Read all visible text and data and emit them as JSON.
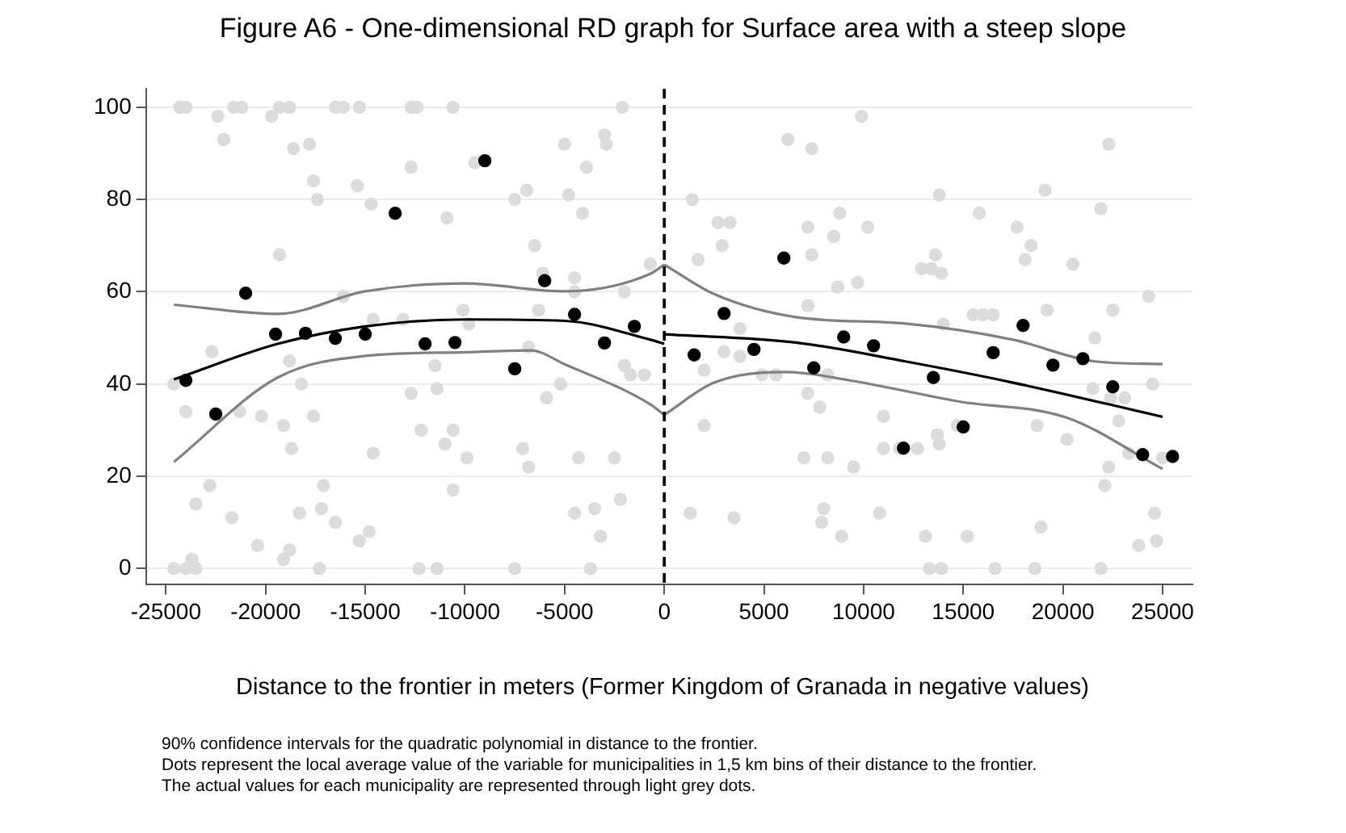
{
  "chart_data": {
    "type": "scatter",
    "title": "Figure A6 - One-dimensional RD graph for Surface area with a steep slope",
    "xlabel": "Distance to the frontier in meters (Former Kingdom of Granada in negative values)",
    "annotations": [
      "90% confidence intervals for the quadratic polynomial in distance to the frontier.",
      "Dots represent the local average value of the variable for municipalities in 1,5 km bins of their distance to the frontier.",
      "The actual values for each municipality are represented through light grey dots."
    ],
    "xlim": [
      -26000,
      26500
    ],
    "ylim": [
      -3.5,
      104
    ],
    "xticks": [
      -25000,
      -20000,
      -15000,
      -10000,
      -5000,
      0,
      5000,
      10000,
      15000,
      20000,
      25000
    ],
    "yticks": [
      0,
      20,
      40,
      60,
      80,
      100
    ],
    "grid": "y",
    "marker": "circle",
    "ref_lines": [
      {
        "axis": "x",
        "value": 0,
        "color": "#000000",
        "line_style": "dashed"
      }
    ],
    "series": [
      {
        "color": "#dcdcdc",
        "x": [
          -24600,
          -24000,
          -23700,
          -23500,
          -24300,
          -24000,
          -22400,
          -22100,
          -21600,
          -21200,
          -22700,
          -24000,
          -23500,
          -22800,
          -21700,
          -21300,
          -20400,
          -20200,
          -19700,
          -19300,
          -18800,
          -19300,
          -19100,
          -18700,
          -18600,
          -18800,
          -19100,
          -18800,
          -18300,
          -18200,
          -17800,
          -17600,
          -17400,
          -17600,
          -17300,
          -17200,
          -17100,
          -16500,
          -16500,
          -16100,
          -16100,
          -15300,
          -15400,
          -15300,
          -14800,
          -14700,
          -14600,
          -14600,
          -13100,
          -12700,
          -12400,
          -12700,
          -12700,
          -12300,
          -12200,
          -11500,
          -11400,
          -11400,
          -11000,
          -10600,
          -10900,
          -10600,
          -10600,
          -10100,
          -9900,
          -9800,
          -9500,
          -7500,
          -7500,
          -7100,
          -6900,
          -6800,
          -6800,
          -6500,
          -6300,
          -6100,
          -5900,
          -5200,
          -5000,
          -4800,
          -4500,
          -4300,
          -4500,
          -4500,
          -3900,
          -4100,
          -3500,
          -3200,
          -3000,
          -2900,
          -2500,
          -2200,
          -2100,
          -2000,
          -2000,
          -1700,
          -1000,
          -700,
          -3700,
          -24600,
          1300,
          1700,
          1400,
          2000,
          2000,
          2700,
          3300,
          2900,
          3000,
          3500,
          3800,
          3800,
          4900,
          5600,
          6200,
          7400,
          7200,
          7200,
          7400,
          7200,
          7800,
          8000,
          7900,
          8200,
          8500,
          8800,
          8700,
          8900,
          9500,
          9700,
          10200,
          10800,
          11000,
          11000,
          11800,
          12700,
          9900,
          7000,
          8200,
          12900,
          13400,
          13900,
          13600,
          13800,
          14000,
          13100,
          13300,
          13900,
          13700,
          13800,
          14700,
          15200,
          15500,
          16000,
          16500,
          15800,
          16600,
          17700,
          18400,
          18100,
          18700,
          18600,
          18900,
          19100,
          19200,
          20200,
          20500,
          21600,
          21900,
          22300,
          22500,
          21500,
          22400,
          23100,
          22800,
          22100,
          22300,
          21900,
          23300,
          23800,
          24300,
          24500,
          24600,
          24700,
          25000
        ],
        "values": [
          0,
          0,
          2,
          0,
          100,
          100,
          98,
          93,
          100,
          100,
          47,
          34,
          14,
          18,
          11,
          34,
          5,
          33,
          98,
          100,
          100,
          68,
          31,
          26,
          91,
          45,
          2,
          4,
          12,
          40,
          92,
          84,
          80,
          33,
          0,
          13,
          18,
          10,
          100,
          100,
          59,
          100,
          83,
          6,
          8,
          79,
          54,
          25,
          54,
          100,
          100,
          87,
          38,
          0,
          30,
          44,
          0,
          39,
          27,
          100,
          76,
          30,
          17,
          56,
          24,
          53,
          88,
          80,
          0,
          26,
          82,
          22,
          48,
          70,
          56,
          64,
          37,
          40,
          92,
          81,
          60,
          24,
          12,
          63,
          87,
          77,
          13,
          7,
          94,
          92,
          24,
          15,
          100,
          60,
          44,
          42,
          42,
          66,
          0,
          40,
          12,
          67,
          80,
          43,
          31,
          75,
          75,
          70,
          47,
          11,
          52,
          46,
          42,
          42,
          93,
          91,
          74,
          57,
          68,
          38,
          35,
          13,
          10,
          42,
          72,
          77,
          61,
          7,
          22,
          62,
          74,
          12,
          33,
          26,
          26,
          26,
          98,
          24,
          24,
          65,
          65,
          64,
          68,
          81,
          53,
          7,
          0,
          0,
          29,
          27,
          31,
          7,
          55,
          55,
          55,
          77,
          0,
          74,
          70,
          67,
          31,
          0,
          9,
          82,
          56,
          28,
          66,
          50,
          78,
          92,
          56,
          39,
          37,
          37,
          32,
          18,
          22,
          0,
          25,
          5,
          59,
          40,
          12,
          6,
          24
        ]
      },
      {
        "type": "line",
        "marker": "none",
        "color": "#808080",
        "x": [
          -24600,
          -19400,
          -15000,
          -10000,
          -5000,
          -700,
          0
        ],
        "values": [
          57.2,
          55.2,
          60.1,
          61.8,
          60.1,
          63.9,
          65.9
        ]
      },
      {
        "type": "line",
        "marker": "none",
        "color": "#808080",
        "x": [
          -24600,
          -19400,
          -15000,
          -10000,
          -6700,
          -5000,
          -700,
          0
        ],
        "values": [
          23.1,
          41.4,
          46.1,
          46.9,
          47.3,
          44.3,
          35.6,
          33.3
        ]
      },
      {
        "type": "line",
        "marker": "none",
        "color": "#000000",
        "x": [
          -24600,
          -19400,
          -15000,
          -10000,
          -5000,
          -700,
          0
        ],
        "values": [
          41,
          48.7,
          52.5,
          54,
          53.7,
          49.6,
          48.7
        ]
      },
      {
        "type": "line",
        "marker": "none",
        "color": "#808080",
        "x": [
          0,
          2500,
          6600,
          12100,
          17500,
          21600,
          25000
        ],
        "values": [
          65.9,
          59.5,
          54.5,
          53.1,
          49.6,
          44.9,
          44.3
        ]
      },
      {
        "type": "line",
        "marker": "none",
        "color": "#808080",
        "x": [
          0,
          2500,
          6100,
          9300,
          14800,
          20200,
          25000
        ],
        "values": [
          33.3,
          40.3,
          42.6,
          40.8,
          36.2,
          32.7,
          21.6
        ]
      },
      {
        "type": "line",
        "marker": "none",
        "color": "#000000",
        "x": [
          0,
          6600,
          12100,
          17500,
          25000
        ],
        "values": [
          50.8,
          49,
          44.9,
          40.3,
          32.9
        ]
      },
      {
        "color": "#000000",
        "x": [
          -24000,
          -22500,
          -21000,
          -19500,
          -18000,
          -16500,
          -15000,
          -13500,
          -12000,
          -10500,
          -9000,
          -7500,
          -6000,
          -4500,
          -3000,
          -1500
        ],
        "values": [
          40.8,
          33.5,
          59.7,
          50.8,
          51,
          49.9,
          50.8,
          77,
          48.7,
          49,
          88.4,
          43.3,
          62.4,
          55.1,
          48.9,
          52.5
        ]
      },
      {
        "color": "#000000",
        "x": [
          1500,
          3000,
          4500,
          6000,
          7500,
          9000,
          10500,
          12000,
          13500,
          15000,
          16500,
          18000,
          19500,
          21000,
          22500,
          24000,
          25500
        ],
        "values": [
          46.3,
          55.3,
          47.5,
          67.3,
          43.5,
          50.2,
          48.3,
          26.1,
          41.4,
          30.7,
          46.8,
          52.7,
          44.1,
          45.5,
          39.4,
          24.7,
          24.3
        ]
      }
    ]
  }
}
